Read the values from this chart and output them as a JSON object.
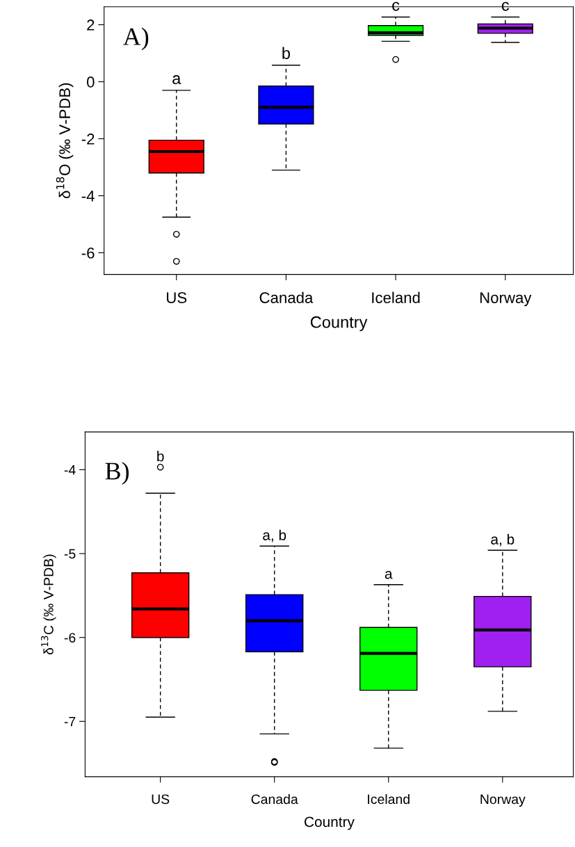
{
  "chart_data": [
    {
      "type": "box",
      "xlabel": "Country",
      "ylabel": "δ$^{18}$O (‰ V-PDB)",
      "categories": [
        "US",
        "Canada",
        "Iceland",
        "Norway"
      ],
      "colors": [
        "#ff0000",
        "#0000ff",
        "#00ff00",
        "#a020f0"
      ],
      "boxes": [
        {
          "low": -4.75,
          "q1": -3.2,
          "median": -2.45,
          "q3": -2.05,
          "high": -0.3,
          "outliers": [
            -5.35,
            -6.3
          ]
        },
        {
          "low": -3.1,
          "q1": -1.48,
          "median": -0.9,
          "q3": -0.15,
          "high": 0.58
        },
        {
          "low": 1.42,
          "q1": 1.63,
          "median": 1.72,
          "q3": 1.97,
          "high": 2.27,
          "outliers": [
            0.78
          ]
        },
        {
          "low": 1.38,
          "q1": 1.7,
          "median": 1.88,
          "q3": 2.03,
          "high": 2.27
        }
      ],
      "ylim": [
        -6.76,
        2.63
      ],
      "yticks": [
        -6,
        -4,
        -2,
        0,
        2
      ],
      "grid": false,
      "legend": false,
      "annotations": [
        "A)",
        "a",
        "b",
        "c",
        "c"
      ]
    },
    {
      "type": "box",
      "xlabel": "Country",
      "ylabel": "δ$^{13}$C (‰ V-PDB)",
      "categories": [
        "US",
        "Canada",
        "Iceland",
        "Norway"
      ],
      "colors": [
        "#ff0000",
        "#0000ff",
        "#00ff00",
        "#a020f0"
      ],
      "boxes": [
        {
          "low": -6.95,
          "q1": -6.0,
          "median": -5.66,
          "q3": -5.23,
          "high": -4.28,
          "outliers": [
            -3.97
          ]
        },
        {
          "low": -7.15,
          "q1": -6.17,
          "median": -5.8,
          "q3": -5.49,
          "high": -4.91,
          "outliers": [
            -7.48,
            -7.49
          ]
        },
        {
          "low": -7.32,
          "q1": -6.63,
          "median": -6.19,
          "q3": -5.88,
          "high": -5.37
        },
        {
          "low": -6.88,
          "q1": -6.35,
          "median": -5.91,
          "q3": -5.51,
          "high": -4.96
        }
      ],
      "ylim": [
        -7.66,
        -3.55
      ],
      "yticks": [
        -7,
        -6,
        -5,
        -4
      ],
      "grid": false,
      "legend": false,
      "annotations": [
        "B)",
        "b",
        "a, b",
        "a",
        "a, b"
      ]
    }
  ]
}
